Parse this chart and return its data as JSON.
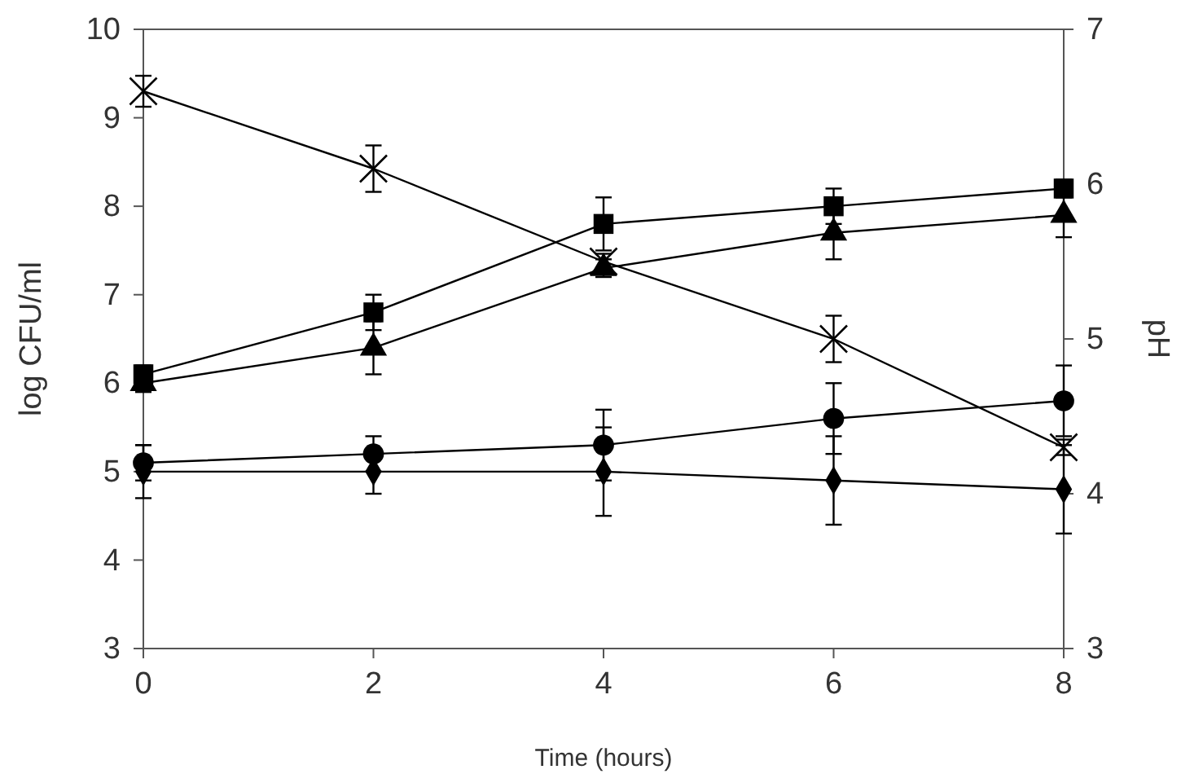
{
  "chart_data": {
    "type": "line",
    "xlabel": "Time (hours)",
    "ylabel": "log CFU/ml",
    "y2label": "pH",
    "x": [
      0,
      2,
      4,
      6,
      8
    ],
    "xlim": [
      0,
      8
    ],
    "xticks": [
      0,
      2,
      4,
      6,
      8
    ],
    "ylim": [
      3,
      10
    ],
    "yticks": [
      3,
      4,
      5,
      6,
      7,
      8,
      9,
      10
    ],
    "y2lim": [
      3,
      7
    ],
    "y2ticks": [
      3,
      4,
      5,
      6,
      7
    ],
    "grid": false,
    "line_style": "solid",
    "series": [
      {
        "color": "#000000",
        "marker": "square",
        "values": [
          6.1,
          6.8,
          7.8,
          8.0,
          8.2
        ],
        "errors": [
          0.1,
          0.2,
          0.3,
          0.2,
          0.1
        ]
      },
      {
        "color": "#000000",
        "marker": "triangle",
        "values": [
          6.0,
          6.4,
          7.3,
          7.7,
          7.9
        ],
        "errors": [
          0.1,
          0.3,
          0.1,
          0.3,
          0.25
        ]
      },
      {
        "color": "#000000",
        "marker": "circle",
        "values": [
          5.1,
          5.2,
          5.3,
          5.6,
          5.8
        ],
        "errors": [
          0.2,
          0.2,
          0.4,
          0.4,
          0.4
        ]
      },
      {
        "color": "#000000",
        "marker": "diamond",
        "values": [
          5.0,
          5.0,
          5.0,
          4.9,
          4.8
        ],
        "errors": [
          0.3,
          0.25,
          0.5,
          0.5,
          0.5
        ]
      },
      {
        "color": "#000000",
        "marker": "cross",
        "axis": "y2",
        "values": [
          6.6,
          6.1,
          5.5,
          5.0,
          4.3
        ],
        "errors": [
          0.1,
          0.15,
          0.05,
          0.15,
          0.05
        ]
      }
    ]
  }
}
